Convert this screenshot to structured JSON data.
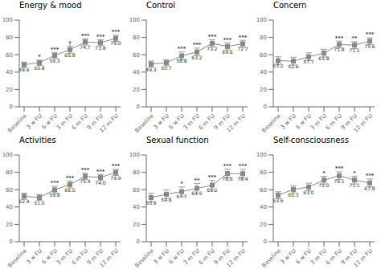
{
  "chart_data": [
    {
      "type": "line",
      "title": "Energy & mood",
      "categories": [
        "Baseline",
        "3 w FU",
        "6 w FU",
        "3 m FU",
        "6 m FU",
        "9 m FU",
        "12 m FU"
      ],
      "values": [
        48.6,
        50.8,
        59.3,
        65.8,
        74.7,
        73.8,
        79.0
      ],
      "value_labels": [
        "48.6",
        "50.8",
        "59.3",
        "65.8",
        "74.7",
        "73.8",
        "79.0"
      ],
      "errors": [
        3.0,
        3.0,
        3.5,
        4.0,
        3.5,
        3.5,
        3.5
      ],
      "annotations": [
        null,
        "*",
        "***",
        "†",
        "***",
        "***",
        "***"
      ],
      "ylim": [
        0,
        100
      ],
      "yticks": [
        0,
        20,
        40,
        60,
        80,
        100
      ],
      "color": "#888888",
      "marker": "square",
      "data_labels": true
    },
    {
      "type": "line",
      "title": "Control",
      "categories": [
        "Baseline",
        "3 w FU",
        "6 w FU",
        "3 m FU",
        "6 m FU",
        "9 m FU",
        "12 m FU"
      ],
      "values": [
        49.3,
        50.7,
        58.8,
        63.2,
        73.2,
        69.6,
        72.7
      ],
      "value_labels": [
        "49.3",
        "50.7",
        "58.8",
        "63.2",
        "73.2",
        "69.6",
        "72.7"
      ],
      "errors": [
        3.5,
        3.5,
        4.5,
        4.5,
        4.0,
        4.0,
        4.0
      ],
      "annotations": [
        null,
        null,
        "***",
        "***",
        "***",
        "***",
        "***"
      ],
      "ylim": [
        0,
        100
      ],
      "yticks": [
        0,
        20,
        40,
        60,
        80,
        100
      ],
      "color": "#888888",
      "marker": "square",
      "data_labels": true
    },
    {
      "type": "line",
      "title": "Concern",
      "categories": [
        "Baseline",
        "3 w FU",
        "6 w FU",
        "3 m FU",
        "6 m FU",
        "9 m FU",
        "12 m FU"
      ],
      "values": [
        53.2,
        52.6,
        57.7,
        61.8,
        71.8,
        71.1,
        75.6
      ],
      "value_labels": [
        "53.2",
        "52.6",
        "57.7",
        "61.8",
        "71.8",
        "71.1",
        "75.6"
      ],
      "errors": [
        4.5,
        4.5,
        4.5,
        4.5,
        4.0,
        4.0,
        4.0
      ],
      "annotations": [
        null,
        null,
        null,
        null,
        "***",
        "**",
        "***"
      ],
      "ylim": [
        0,
        100
      ],
      "yticks": [
        0,
        20,
        40,
        60,
        80,
        100
      ],
      "color": "#888888",
      "marker": "square",
      "data_labels": true
    },
    {
      "type": "line",
      "title": "Activities",
      "categories": [
        "Baseline",
        "3 w FU",
        "6 w FU",
        "3 m FU",
        "6 m FU",
        "9 m FU",
        "12 m FU"
      ],
      "values": [
        52.4,
        51.0,
        59.8,
        66.0,
        75.4,
        74.0,
        79.9
      ],
      "value_labels": [
        "52.4",
        "51.0",
        "59.8",
        "66.0",
        "75.4",
        "74.0",
        "79.9"
      ],
      "errors": [
        3.5,
        3.5,
        4.0,
        4.0,
        3.5,
        3.5,
        3.5
      ],
      "annotations": [
        null,
        null,
        "***",
        "***",
        "***",
        "***",
        "***"
      ],
      "ylim": [
        0,
        100
      ],
      "yticks": [
        0,
        20,
        40,
        60,
        80,
        100
      ],
      "color": "#888888",
      "marker": "square",
      "data_labels": true
    },
    {
      "type": "line",
      "title": "Sexual function",
      "categories": [
        "Baseline",
        "3 w FU",
        "6 w FU",
        "3 m FU",
        "6 m FU",
        "9 m FU",
        "12 m FU"
      ],
      "values": [
        50.9,
        54.8,
        57.7,
        61.5,
        65.2,
        78.6,
        78.4
      ],
      "value_labels": [
        "50.9",
        "54.8",
        "57.7",
        "61.5",
        "65.2",
        "78.6",
        "78.4"
      ],
      "errors": [
        5.0,
        5.0,
        5.5,
        5.5,
        5.5,
        5.0,
        5.0
      ],
      "annotations": [
        null,
        null,
        "*",
        "**",
        "***",
        "***",
        "***"
      ],
      "ylim": [
        0,
        100
      ],
      "yticks": [
        0,
        20,
        40,
        60,
        80,
        100
      ],
      "color": "#888888",
      "marker": "square",
      "data_labels": true
    },
    {
      "type": "line",
      "title": "Self-consciousness",
      "categories": [
        "Baseline",
        "3 w FU",
        "6 w FU",
        "3 m FU",
        "6 m FU",
        "9 m FU",
        "12 m FU"
      ],
      "values": [
        53.6,
        60.3,
        63.0,
        71.0,
        76.1,
        71.1,
        67.8
      ],
      "value_labels": [
        "53.6",
        "60.3",
        "63.0",
        "71.0",
        "76.1",
        "71.1",
        "67.8"
      ],
      "errors": [
        4.0,
        4.0,
        4.5,
        4.5,
        4.5,
        4.5,
        4.5
      ],
      "annotations": [
        null,
        null,
        null,
        "*",
        "***",
        "*",
        "***"
      ],
      "ylim": [
        0,
        100
      ],
      "yticks": [
        0,
        20,
        40,
        60,
        80,
        100
      ],
      "color": "#888888",
      "marker": "square",
      "data_labels": true
    }
  ]
}
